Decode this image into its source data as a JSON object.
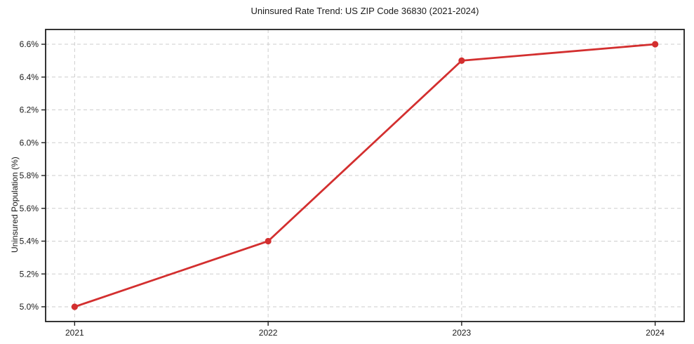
{
  "chart_data": {
    "type": "line",
    "title": "Uninsured Rate Trend: US ZIP Code 36830 (2021-2024)",
    "xlabel": "",
    "ylabel": "Uninsured Population (%)",
    "x": [
      2021,
      2022,
      2023,
      2024
    ],
    "values": [
      5.0,
      5.4,
      6.5,
      6.6
    ],
    "xtick_labels": [
      "2021",
      "2022",
      "2023",
      "2024"
    ],
    "yticks": [
      5.0,
      5.2,
      5.4,
      5.6,
      5.8,
      6.0,
      6.2,
      6.4,
      6.6
    ],
    "ytick_labels": [
      "5.0%",
      "5.2%",
      "5.4%",
      "5.6%",
      "5.8%",
      "6.0%",
      "6.2%",
      "6.4%",
      "6.6%"
    ],
    "xlim": [
      2020.85,
      2024.15
    ],
    "ylim": [
      4.91,
      6.69
    ],
    "grid": true,
    "grid_style": "dashed",
    "legend": "none",
    "line_color": "#d32f2f",
    "marker": "circle",
    "grid_color": "#cdcdcd",
    "spine_color": "#1f1f1f",
    "text_color": "#1a1a1a"
  }
}
